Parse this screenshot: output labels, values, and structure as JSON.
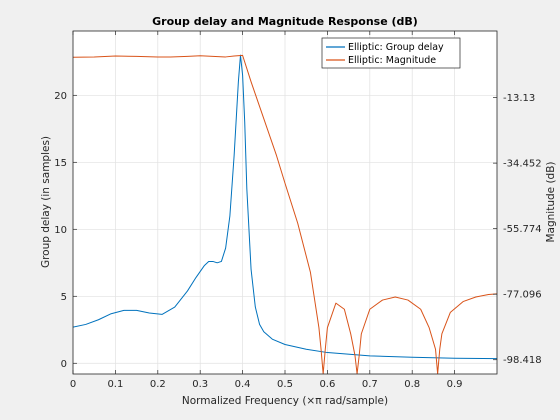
{
  "chart_data": {
    "type": "line",
    "title": "Group delay and Magnitude Response (dB)",
    "xlabel": "Normalized Frequency (×π rad/sample)",
    "ylabel_left": "Group delay (in samples)",
    "ylabel_right": "Magnitude (dB)",
    "xlim": [
      0,
      1
    ],
    "ylim_left": [
      -0.8,
      24.8
    ],
    "ylim_right": [
      -103.06,
      8.54
    ],
    "grid": true,
    "legend_position": "top-right",
    "x_ticks": [
      0,
      0.1,
      0.2,
      0.3,
      0.4,
      0.5,
      0.6,
      0.7,
      0.8,
      0.9
    ],
    "x_tick_labels": [
      "0",
      "0.1",
      "0.2",
      "0.3",
      "0.4",
      "0.5",
      "0.6",
      "0.7",
      "0.8",
      "0.9"
    ],
    "y_left_ticks": [
      0,
      5,
      10,
      15,
      20
    ],
    "y_left_tick_labels": [
      "0",
      "5",
      "10",
      "15",
      "20"
    ],
    "y_right_ticks": [
      -98.418,
      -77.096,
      -55.774,
      -34.452,
      -13.13
    ],
    "y_right_tick_labels": [
      "-98.418",
      "-77.096",
      "-55.774",
      "-34.452",
      "-13.13"
    ],
    "series": [
      {
        "name": "Elliptic: Group delay",
        "axis": "left",
        "color": "#0072bd",
        "x": [
          0,
          0.03,
          0.06,
          0.09,
          0.12,
          0.15,
          0.18,
          0.21,
          0.24,
          0.27,
          0.29,
          0.31,
          0.32,
          0.33,
          0.34,
          0.35,
          0.36,
          0.37,
          0.38,
          0.39,
          0.395,
          0.4,
          0.405,
          0.41,
          0.42,
          0.43,
          0.44,
          0.45,
          0.47,
          0.5,
          0.55,
          0.6,
          0.7,
          0.8,
          0.9,
          1.0
        ],
        "y": [
          2.7,
          2.9,
          3.25,
          3.7,
          3.95,
          3.95,
          3.75,
          3.65,
          4.2,
          5.4,
          6.4,
          7.3,
          7.6,
          7.6,
          7.5,
          7.6,
          8.6,
          11.0,
          15.5,
          21.0,
          23.0,
          21.5,
          18.0,
          13.0,
          7.0,
          4.2,
          2.9,
          2.35,
          1.8,
          1.4,
          1.05,
          0.8,
          0.55,
          0.45,
          0.38,
          0.35
        ]
      },
      {
        "name": "Elliptic: Magnitude",
        "axis": "right",
        "color": "#d95319",
        "x": [
          0,
          0.05,
          0.1,
          0.15,
          0.2,
          0.23,
          0.27,
          0.3,
          0.33,
          0.36,
          0.38,
          0.4,
          0.42,
          0.45,
          0.48,
          0.5,
          0.53,
          0.56,
          0.58,
          0.585,
          0.59,
          0.595,
          0.6,
          0.62,
          0.64,
          0.655,
          0.665,
          0.67,
          0.675,
          0.68,
          0.7,
          0.73,
          0.76,
          0.79,
          0.82,
          0.84,
          0.855,
          0.86,
          0.865,
          0.87,
          0.89,
          0.92,
          0.95,
          0.98,
          1.0
        ],
        "y": [
          0,
          0.1,
          0.4,
          0.3,
          0.1,
          0.1,
          0.3,
          0.5,
          0.3,
          0.1,
          0.4,
          0.6,
          -8,
          -20,
          -32,
          -41,
          -54,
          -70,
          -88,
          -95,
          -103,
          -95,
          -88,
          -80,
          -82,
          -90,
          -97,
          -103,
          -97,
          -90,
          -82,
          -79,
          -78,
          -79,
          -82,
          -88,
          -95,
          -103,
          -95,
          -90,
          -83,
          -79.5,
          -78,
          -77.2,
          -77
        ]
      }
    ]
  }
}
